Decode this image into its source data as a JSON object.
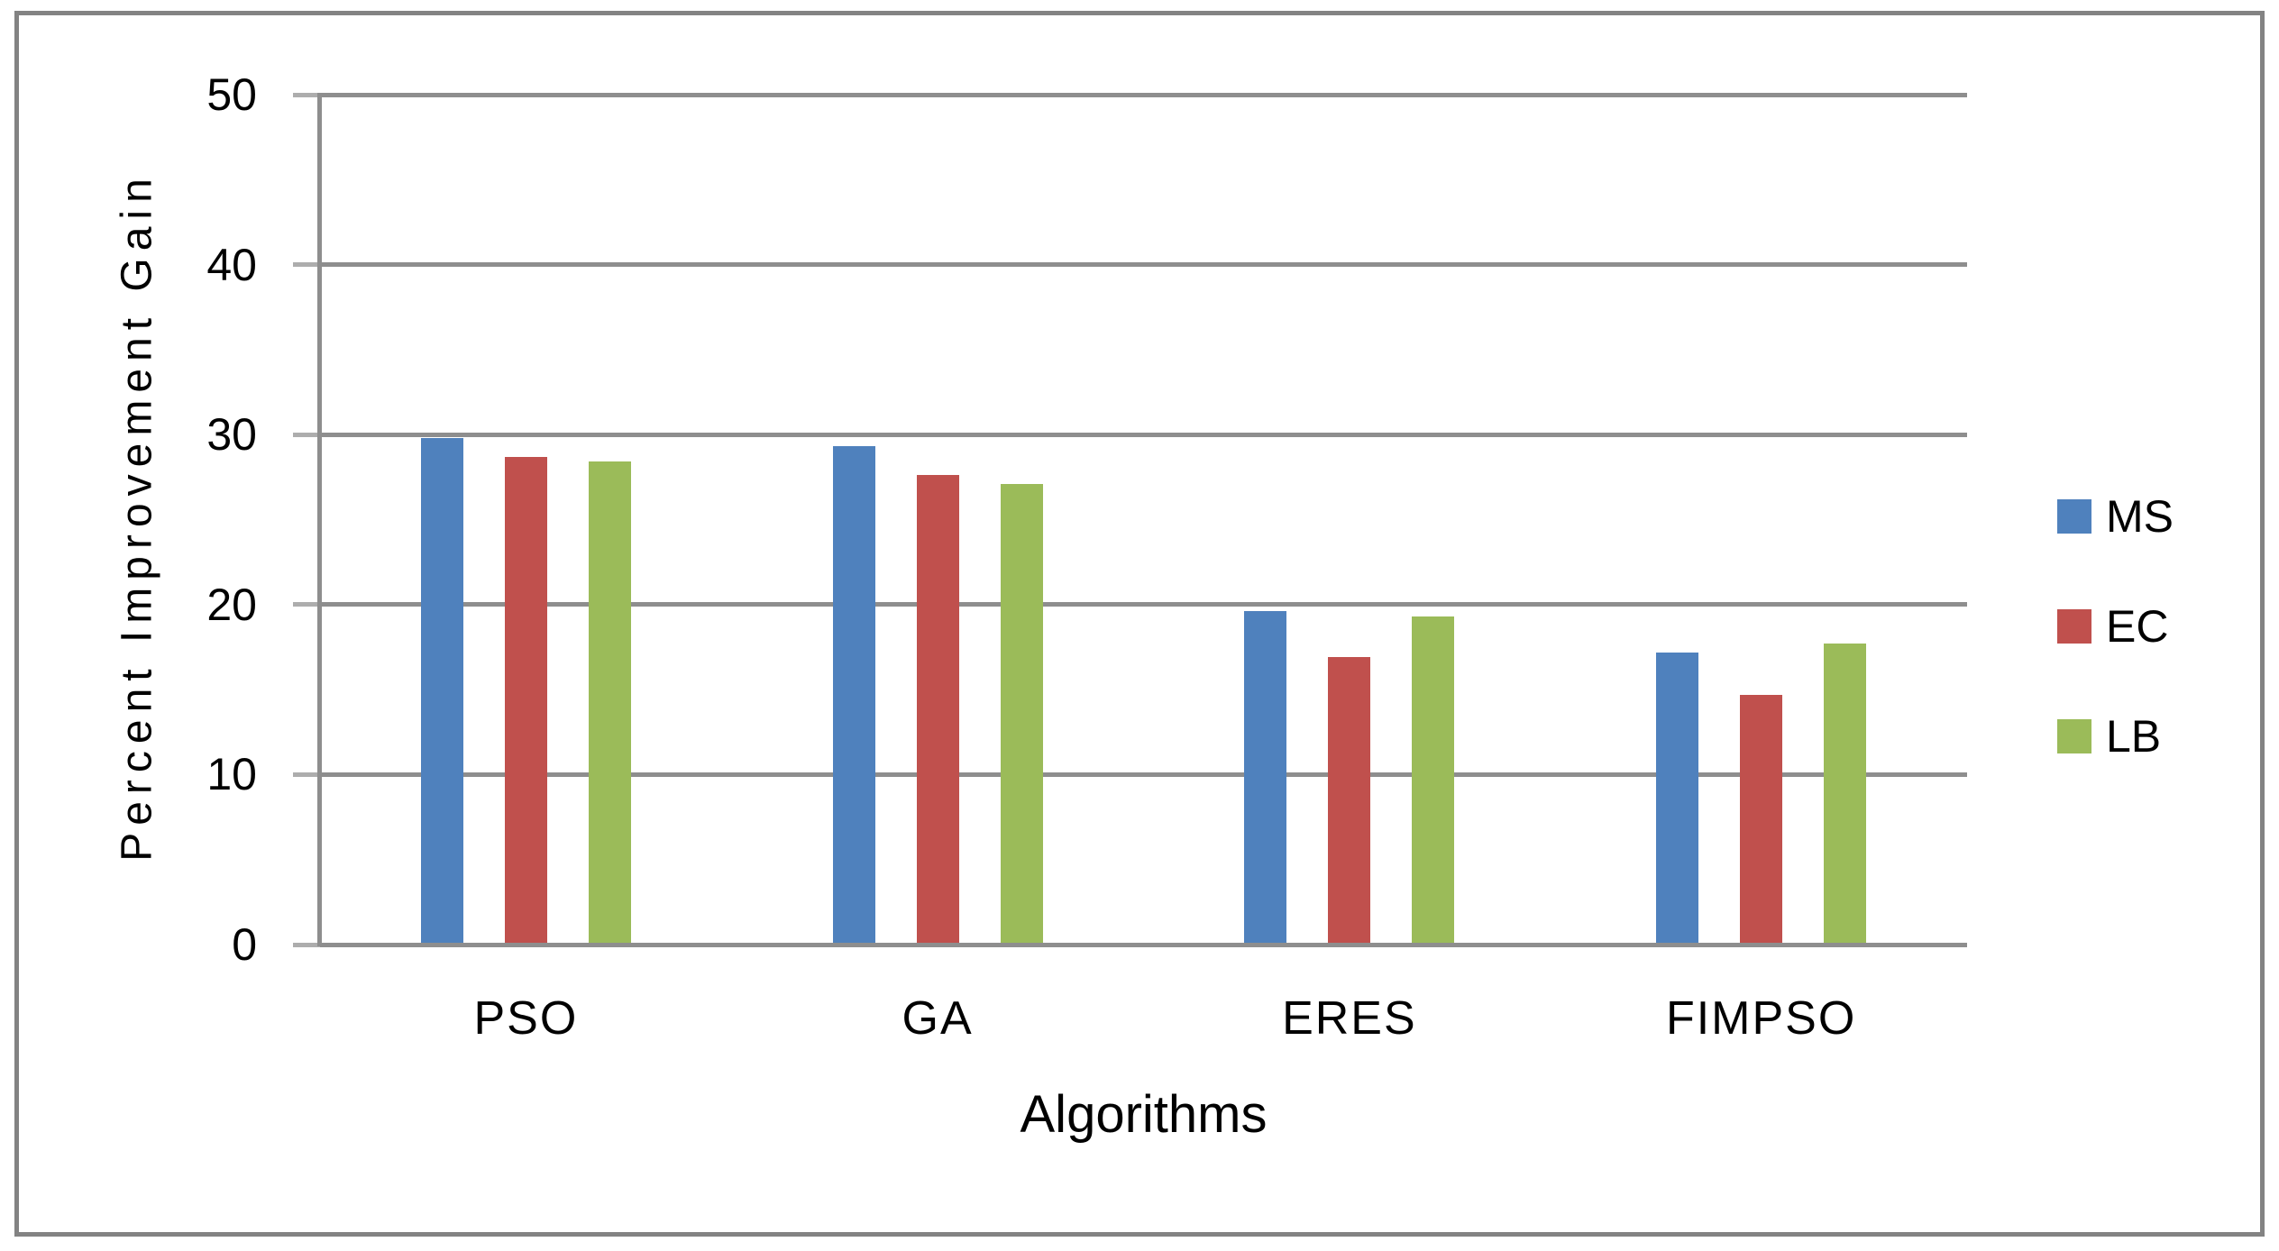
{
  "chart_data": {
    "type": "bar",
    "title": "",
    "xlabel": "Algorithms",
    "ylabel": "Percent Improvement Gain",
    "categories": [
      "PSO",
      "GA",
      "ERES",
      "FIMPSO"
    ],
    "series": [
      {
        "name": "MS",
        "color": "#4F81BD",
        "values": [
          29.8,
          29.3,
          19.6,
          17.2
        ]
      },
      {
        "name": "EC",
        "color": "#C0504D",
        "values": [
          28.7,
          27.6,
          16.9,
          14.7
        ]
      },
      {
        "name": "LB",
        "color": "#9BBB59",
        "values": [
          28.4,
          27.1,
          19.3,
          17.7
        ]
      }
    ],
    "ylim": [
      0,
      50
    ],
    "yticks": [
      0,
      10,
      20,
      30,
      40,
      50
    ],
    "grid": true,
    "gridline_color": "#8E8E8E",
    "axis_color": "#8E8E8E",
    "tick_color": "#ADADAD",
    "border_color": "#838383",
    "legend_position": "right",
    "legend_labels": [
      "MS",
      "EC",
      "LB"
    ]
  }
}
